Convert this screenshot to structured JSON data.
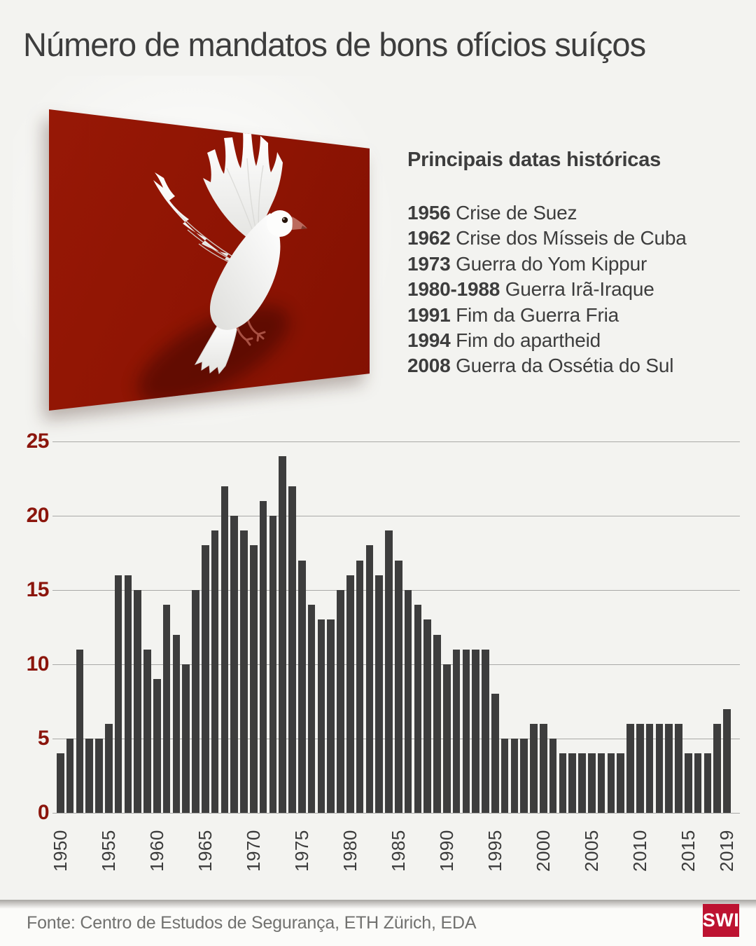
{
  "title": "Número de mandatos de bons ofícios suíços",
  "key_dates": {
    "heading": "Principais datas históricas",
    "items": [
      {
        "year": "1956",
        "event": "Crise de Suez"
      },
      {
        "year": "1962",
        "event": "Crise dos Mísseis de Cuba"
      },
      {
        "year": "1973",
        "event": "Guerra do Yom Kippur"
      },
      {
        "year": "1980-1988",
        "event": "Guerra Irã-Iraque"
      },
      {
        "year": "1991",
        "event": "Fim da Guerra Fria"
      },
      {
        "year": "1994",
        "event": "Fim do apartheid"
      },
      {
        "year": "2008",
        "event": "Guerra da Ossétia do Sul"
      }
    ]
  },
  "chart_data": {
    "type": "bar",
    "title": "Número de mandatos de bons ofícios suíços",
    "xlabel": "",
    "ylabel": "",
    "ylim": [
      0,
      25
    ],
    "yticks": [
      0,
      5,
      10,
      15,
      20,
      25
    ],
    "xticks": [
      1950,
      1955,
      1960,
      1965,
      1970,
      1975,
      1980,
      1985,
      1990,
      1995,
      2000,
      2005,
      2010,
      2015,
      2019
    ],
    "grid": true,
    "legend": "none",
    "years": [
      1950,
      1951,
      1952,
      1953,
      1954,
      1955,
      1956,
      1957,
      1958,
      1959,
      1960,
      1961,
      1962,
      1963,
      1964,
      1965,
      1966,
      1967,
      1968,
      1969,
      1970,
      1971,
      1972,
      1973,
      1974,
      1975,
      1976,
      1977,
      1978,
      1979,
      1980,
      1981,
      1982,
      1983,
      1984,
      1985,
      1986,
      1987,
      1988,
      1989,
      1990,
      1991,
      1992,
      1993,
      1994,
      1995,
      1996,
      1997,
      1998,
      1999,
      2000,
      2001,
      2002,
      2003,
      2004,
      2005,
      2006,
      2007,
      2008,
      2009,
      2010,
      2011,
      2012,
      2013,
      2014,
      2015,
      2016,
      2017,
      2018,
      2019
    ],
    "values": [
      4,
      5,
      11,
      5,
      5,
      6,
      16,
      16,
      15,
      11,
      9,
      14,
      12,
      10,
      15,
      18,
      19,
      22,
      20,
      19,
      18,
      21,
      20,
      24,
      22,
      17,
      14,
      13,
      13,
      15,
      16,
      17,
      18,
      16,
      19,
      17,
      15,
      14,
      13,
      12,
      10,
      11,
      11,
      11,
      11,
      8,
      5,
      5,
      5,
      6,
      6,
      5,
      4,
      4,
      4,
      4,
      4,
      4,
      4,
      6,
      6,
      6,
      6,
      6,
      6,
      4,
      4,
      4,
      6,
      7
    ]
  },
  "footer": {
    "source": "Fonte: Centro de Estudos de Segurança, ETH Zürich, EDA",
    "logo": "SWI"
  },
  "icons": {
    "dove": "dove-image"
  },
  "colors": {
    "background": "#f3f3f0",
    "panel_red": "#8e1403",
    "text_dark": "#3d3d3d",
    "grid": "#a9a9a7",
    "bar": "#3d3d3d",
    "axis_red": "#8b150c",
    "footer_bg": "#fbfbf9",
    "logo_red": "#bd1331"
  }
}
